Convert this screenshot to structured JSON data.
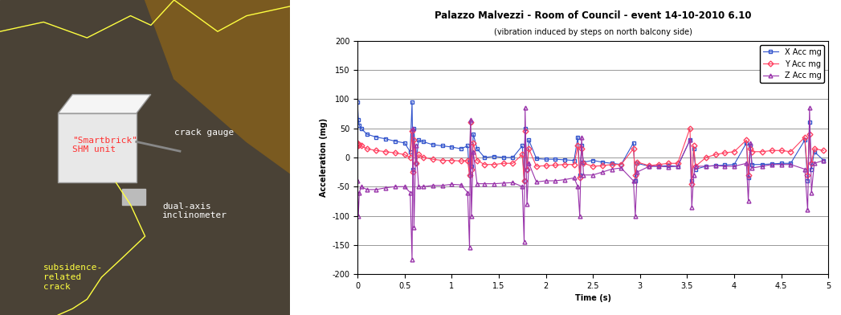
{
  "photo": {
    "labels": [
      {
        "text": "\"Smartbrick\"\nSHM unit",
        "color": "#ff3030"
      },
      {
        "text": "crack gauge",
        "color": "#ffffff"
      },
      {
        "text": "dual-axis\ninclinometer",
        "color": "#ffffff"
      },
      {
        "text": "subsidence-\nrelated\ncrack",
        "color": "#ffff40"
      }
    ]
  },
  "chart_data": {
    "type": "line",
    "title": "Palazzo Malvezzi - Room of Council - event 14-10-2010 6.10",
    "subtitle": "(vibration induced by steps on north balcony side)",
    "x_label": "Time (s)",
    "y_label": "Acceleration (mg)",
    "xlim": [
      0,
      5
    ],
    "xticks": [
      0,
      0.5,
      1,
      1.5,
      2,
      2.5,
      3,
      3.5,
      4,
      4.5,
      5
    ],
    "ylim": [
      -200,
      200
    ],
    "yticks": [
      -200,
      -150,
      -100,
      -50,
      0,
      50,
      100,
      150,
      200
    ],
    "grid": true,
    "legend": "upper right",
    "x": [
      0,
      0.01,
      0.02,
      0.04,
      0.1,
      0.2,
      0.3,
      0.4,
      0.5,
      0.56,
      0.58,
      0.59,
      0.6,
      0.62,
      0.65,
      0.7,
      0.8,
      0.9,
      1.0,
      1.1,
      1.17,
      1.19,
      1.2,
      1.21,
      1.23,
      1.27,
      1.35,
      1.45,
      1.55,
      1.65,
      1.75,
      1.77,
      1.78,
      1.8,
      1.82,
      1.9,
      2.0,
      2.1,
      2.2,
      2.3,
      2.34,
      2.36,
      2.38,
      2.4,
      2.5,
      2.6,
      2.7,
      2.8,
      2.93,
      2.95,
      2.97,
      3.1,
      3.2,
      3.3,
      3.4,
      3.53,
      3.55,
      3.57,
      3.59,
      3.7,
      3.8,
      3.9,
      4.0,
      4.13,
      4.15,
      4.17,
      4.19,
      4.3,
      4.4,
      4.5,
      4.6,
      4.75,
      4.78,
      4.8,
      4.82,
      4.85,
      4.95
    ],
    "series": [
      {
        "name": "X Acc mg",
        "color": "#3355cc",
        "marker": "square",
        "line_style": "solid",
        "values": [
          95,
          65,
          55,
          50,
          40,
          35,
          32,
          28,
          25,
          10,
          95,
          -20,
          50,
          -10,
          30,
          27,
          22,
          20,
          18,
          15,
          20,
          -30,
          60,
          -15,
          40,
          15,
          0,
          2,
          0,
          0,
          20,
          -40,
          50,
          -20,
          30,
          -2,
          -3,
          -3,
          -4,
          -5,
          35,
          -30,
          20,
          -8,
          -5,
          -8,
          -10,
          -12,
          25,
          -40,
          -10,
          -15,
          -15,
          -14,
          -15,
          30,
          -40,
          15,
          -20,
          -15,
          -14,
          -13,
          -12,
          25,
          -35,
          20,
          -12,
          -12,
          -11,
          -10,
          -10,
          30,
          -40,
          60,
          -20,
          10,
          -5
        ]
      },
      {
        "name": "Y Acc mg",
        "color": "#ff4060",
        "marker": "diamond",
        "line_style": "solid",
        "values": [
          25,
          20,
          22,
          20,
          15,
          12,
          10,
          8,
          5,
          0,
          45,
          -25,
          30,
          -10,
          5,
          0,
          -3,
          -5,
          -5,
          -6,
          -5,
          -30,
          60,
          -20,
          25,
          -5,
          -12,
          -12,
          -10,
          -10,
          5,
          -40,
          45,
          -20,
          15,
          -15,
          -14,
          -13,
          -12,
          -12,
          20,
          -35,
          15,
          -10,
          -15,
          -14,
          -12,
          -12,
          15,
          -30,
          -8,
          -14,
          -12,
          -10,
          -10,
          50,
          -45,
          20,
          -15,
          0,
          5,
          8,
          10,
          30,
          -30,
          15,
          10,
          10,
          12,
          12,
          10,
          35,
          -30,
          40,
          -10,
          15,
          12
        ]
      },
      {
        "name": "Z Acc mg",
        "color": "#9933aa",
        "marker": "triangle",
        "line_style": "solid",
        "values": [
          -40,
          -100,
          -60,
          -50,
          -55,
          -55,
          -52,
          -50,
          -50,
          -60,
          -175,
          50,
          -120,
          20,
          -50,
          -50,
          -48,
          -48,
          -46,
          -47,
          -60,
          -155,
          65,
          -100,
          10,
          -45,
          -45,
          -45,
          -44,
          -43,
          -50,
          -145,
          85,
          -80,
          -10,
          -42,
          -40,
          -40,
          -38,
          -35,
          -50,
          -100,
          35,
          -30,
          -30,
          -25,
          -20,
          -18,
          -40,
          -100,
          -25,
          -15,
          -15,
          -16,
          -15,
          30,
          -85,
          -30,
          -15,
          -15,
          -14,
          -15,
          -15,
          -10,
          -75,
          25,
          -18,
          -15,
          -12,
          -12,
          -12,
          -20,
          -90,
          85,
          -60,
          -10,
          -5
        ]
      }
    ]
  }
}
